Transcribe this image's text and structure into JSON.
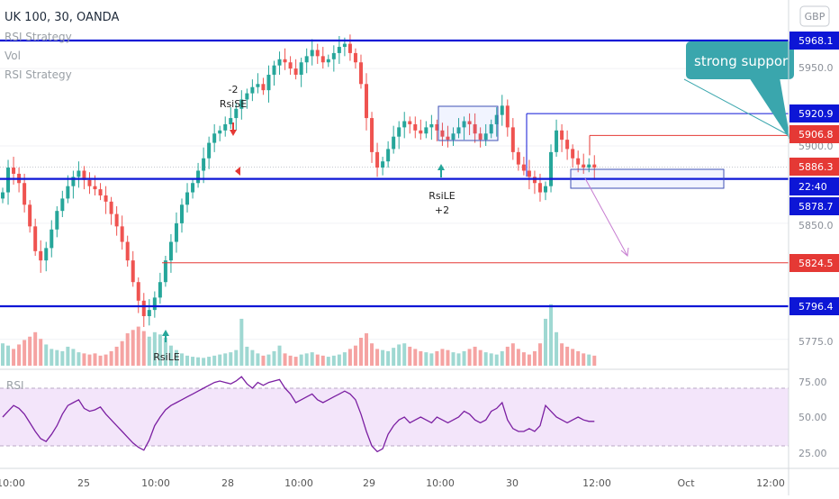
{
  "header": {
    "symbol": "UK 100, 30, OANDA",
    "indicators": [
      "RSI Strategy",
      "Vol",
      "RSI Strategy"
    ]
  },
  "currency_badge": "GBP",
  "colors": {
    "bull": "#26a69a",
    "bear": "#ef5350",
    "vol_bull": "#9fd8d2",
    "vol_bear": "#f5a3a2",
    "support_line": "#0d16d6",
    "resistance_line": "#e53935",
    "rsi_line": "#7b1fa2",
    "rsi_band": "#f3e5fa",
    "callout_bg": "#3aa6ad"
  },
  "callout": {
    "text": "strong suppor"
  },
  "annotations": {
    "signals": [
      {
        "top": "-2",
        "bottom": "RsiSE"
      },
      {
        "top": "RsiLE",
        "bottom": "+2"
      },
      {
        "top": "RsiLE",
        "bottom": ""
      }
    ]
  },
  "price_axis": {
    "ticks": [
      "5950.0",
      "5900.0",
      "5850.0",
      "5775.0"
    ],
    "level_labels": [
      {
        "text": "5968.1",
        "style": "blue"
      },
      {
        "text": "5920.9",
        "style": "blue"
      },
      {
        "text": "5906.8",
        "style": "red"
      },
      {
        "text": "5886.3",
        "style": "red"
      },
      {
        "text": "22:40",
        "style": "blue"
      },
      {
        "text": "5878.7",
        "style": "blue"
      },
      {
        "text": "5824.5",
        "style": "red"
      },
      {
        "text": "5796.4",
        "style": "blue"
      }
    ]
  },
  "rsi_panel": {
    "label": "RSI",
    "ticks": [
      "75.00",
      "50.00",
      "25.00"
    ]
  },
  "time_axis": {
    "ticks": [
      "10:00",
      "25",
      "10:00",
      "28",
      "10:00",
      "29",
      "10:00",
      "30",
      "12:00",
      "Oct",
      "12:00"
    ]
  },
  "chart_data": {
    "type": "candlestick",
    "title": "UK 100, 30, OANDA",
    "y_scale": "price",
    "ylim": [
      5760,
      5980
    ],
    "horizontal_levels": [
      {
        "value": 5968.1,
        "color": "blue",
        "weight": "thick"
      },
      {
        "value": 5920.9,
        "color": "blue",
        "weight": "thin"
      },
      {
        "value": 5906.8,
        "color": "red",
        "weight": "thin"
      },
      {
        "value": 5878.7,
        "color": "blue",
        "weight": "thick"
      },
      {
        "value": 5824.5,
        "color": "red",
        "weight": "thin"
      },
      {
        "value": 5796.4,
        "color": "blue",
        "weight": "thick"
      }
    ],
    "last_price": 5886.3,
    "price_path": [
      5870,
      5886,
      5882,
      5876,
      5862,
      5848,
      5832,
      5826,
      5834,
      5846,
      5858,
      5866,
      5874,
      5880,
      5884,
      5878,
      5874,
      5872,
      5868,
      5864,
      5856,
      5848,
      5838,
      5826,
      5812,
      5800,
      5790,
      5794,
      5802,
      5812,
      5826,
      5838,
      5850,
      5862,
      5870,
      5876,
      5884,
      5892,
      5902,
      5908,
      5910,
      5914,
      5918,
      5924,
      5930,
      5934,
      5938,
      5940,
      5936,
      5946,
      5952,
      5956,
      5954,
      5950,
      5946,
      5954,
      5958,
      5962,
      5958,
      5954,
      5956,
      5960,
      5964,
      5966,
      5960,
      5954,
      5940,
      5918,
      5896,
      5886,
      5890,
      5898,
      5906,
      5912,
      5916,
      5914,
      5910,
      5908,
      5912,
      5914,
      5910,
      5906,
      5904,
      5908,
      5912,
      5916,
      5914,
      5908,
      5904,
      5908,
      5914,
      5920,
      5926,
      5912,
      5896,
      5888,
      5884,
      5880,
      5876,
      5870,
      5874,
      5896,
      5910,
      5904,
      5898,
      5892,
      5888,
      5886,
      5888,
      5886
    ],
    "volume_path": [
      40,
      36,
      30,
      38,
      46,
      52,
      60,
      48,
      38,
      30,
      28,
      26,
      34,
      30,
      24,
      22,
      20,
      22,
      18,
      20,
      26,
      34,
      44,
      58,
      64,
      70,
      62,
      52,
      60,
      56,
      50,
      36,
      28,
      22,
      18,
      16,
      15,
      14,
      16,
      18,
      20,
      22,
      24,
      28,
      84,
      34,
      28,
      22,
      18,
      20,
      26,
      36,
      22,
      18,
      16,
      20,
      22,
      24,
      20,
      18,
      16,
      18,
      20,
      24,
      30,
      36,
      50,
      58,
      40,
      30,
      28,
      26,
      32,
      38,
      40,
      34,
      30,
      26,
      24,
      22,
      26,
      30,
      28,
      24,
      22,
      26,
      30,
      34,
      28,
      24,
      22,
      20,
      26,
      34,
      40,
      30,
      24,
      20,
      26,
      40,
      84,
      110,
      60,
      40,
      34,
      30,
      26,
      22,
      20,
      18
    ],
    "rsi_ylim": [
      20,
      80
    ],
    "rsi_band": [
      30,
      70
    ],
    "rsi_path": [
      50,
      54,
      58,
      56,
      52,
      46,
      40,
      35,
      33,
      38,
      44,
      52,
      58,
      60,
      62,
      56,
      54,
      55,
      57,
      52,
      48,
      44,
      40,
      36,
      32,
      29,
      27,
      34,
      44,
      50,
      55,
      58,
      60,
      62,
      64,
      66,
      68,
      70,
      72,
      74,
      75,
      74,
      73,
      75,
      78,
      73,
      70,
      74,
      72,
      74,
      75,
      76,
      70,
      66,
      60,
      62,
      64,
      66,
      62,
      60,
      62,
      64,
      66,
      68,
      66,
      62,
      52,
      40,
      30,
      26,
      28,
      38,
      44,
      48,
      50,
      46,
      48,
      50,
      48,
      46,
      50,
      48,
      46,
      48,
      50,
      54,
      52,
      48,
      46,
      48,
      54,
      56,
      60,
      48,
      42,
      40,
      40,
      42,
      40,
      44,
      58,
      54,
      50,
      48,
      46,
      48,
      50,
      48,
      47,
      47
    ],
    "rsi_levels": [
      70,
      30
    ]
  }
}
